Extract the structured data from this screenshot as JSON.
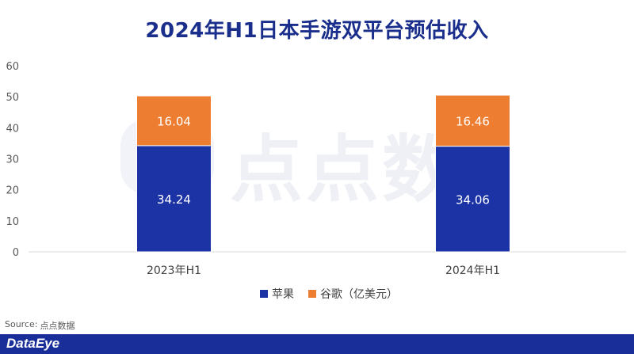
{
  "title": "2024年H1日本手游双平台预估收入",
  "source_label": "Source:",
  "source_value": "点点数据",
  "watermark_text": "点点数",
  "brand": "DataEye",
  "colors": {
    "apple": "#1c33a6",
    "google": "#ed7d31",
    "title": "#1a2e8c",
    "footer": "#1a2e9a"
  },
  "chart_data": {
    "type": "bar",
    "stacked": true,
    "categories": [
      "2023年H1",
      "2024年H1"
    ],
    "series": [
      {
        "name": "苹果",
        "values": [
          34.24,
          34.06
        ]
      },
      {
        "name": "谷歌（亿美元）",
        "values": [
          16.04,
          16.46
        ]
      }
    ],
    "data_labels": [
      [
        "34.24",
        "34.06"
      ],
      [
        "16.04",
        "16.46"
      ]
    ],
    "yticks": [
      "0",
      "10",
      "20",
      "30",
      "40",
      "50",
      "60"
    ],
    "ylim": [
      0,
      60
    ],
    "grid": false,
    "legend_position": "bottom"
  }
}
